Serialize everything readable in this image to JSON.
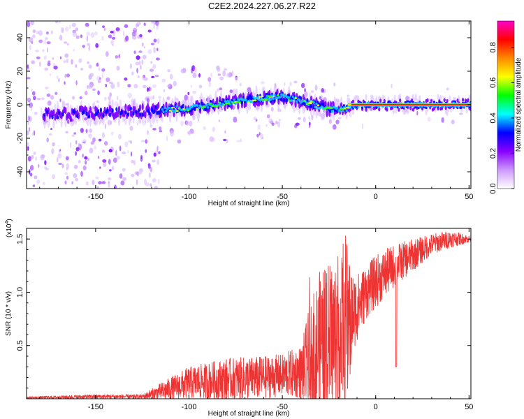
{
  "figure_title": "C2E2.2024.227.06.27.R22",
  "chart_data": [
    {
      "type": "heatmap",
      "title": "C2E2.2024.227.06.27.R22",
      "xlabel": "Height of straight line (km)",
      "ylabel": "Frequency (Hz)",
      "xlim": [
        -187,
        51
      ],
      "ylim": [
        -50,
        50
      ],
      "x_ticks": [
        -150,
        -100,
        -50,
        0,
        50
      ],
      "y_ticks": [
        -40,
        -20,
        0,
        20,
        40
      ],
      "colorbar": {
        "label": "Normalized spectral amplitude",
        "range": [
          0,
          0.95
        ],
        "ticks": [
          "0.0",
          "0.2",
          "0.4",
          "0.6",
          "0.8"
        ],
        "tick_values": [
          0,
          0.2,
          0.4,
          0.6,
          0.8
        ],
        "colors": [
          "#ffffff",
          "#cc99ff",
          "#8800ff",
          "#0000ff",
          "#00ffff",
          "#00ff00",
          "#ffff00",
          "#ff8800",
          "#ff0000",
          "#ff00cc"
        ]
      },
      "ridge": {
        "x": [
          -175,
          -150,
          -125,
          -100,
          -75,
          -50,
          -35,
          -25,
          -15,
          -10,
          0,
          10,
          20,
          30,
          40,
          51
        ],
        "y": [
          -6,
          -5,
          -4,
          -2,
          2,
          5,
          1,
          -3,
          -2,
          0,
          0,
          0,
          0,
          0,
          0,
          0
        ],
        "note": "Noise scattered across full frequency range for heights below -115 km; coherent signal concentrated near 0 Hz, strongest (red) above -15 km"
      }
    },
    {
      "type": "line",
      "xlabel": "Height of straight line (km)",
      "ylabel": "SNR (10 * v/v)",
      "y_multiplier": "(x10",
      "y_multiplier_exp": "4",
      "y_multiplier_close": ")",
      "xlim": [
        -187,
        51
      ],
      "ylim": [
        0,
        1.6
      ],
      "x_ticks": [
        -150,
        -100,
        -50,
        0,
        50
      ],
      "y_ticks": [
        0.5,
        1.0,
        1.5
      ],
      "y_tick_labels": [
        "0.5",
        "1.0",
        "1.5"
      ],
      "color": "#ee3333",
      "envelope": {
        "x": [
          -187,
          -150,
          -125,
          -112,
          -100,
          -80,
          -60,
          -50,
          -40,
          -35,
          -30,
          -20,
          -15,
          -12,
          -5,
          0,
          10,
          20,
          30,
          40,
          51
        ],
        "baseline": [
          0.01,
          0.02,
          0.02,
          0.08,
          0.15,
          0.18,
          0.2,
          0.22,
          0.25,
          0.35,
          0.5,
          0.6,
          0.7,
          0.8,
          1.0,
          1.1,
          1.25,
          1.35,
          1.45,
          1.5,
          1.5
        ],
        "amplitude": [
          0.01,
          0.02,
          0.02,
          0.1,
          0.15,
          0.2,
          0.2,
          0.2,
          0.25,
          0.55,
          0.7,
          0.75,
          0.8,
          0.35,
          0.25,
          0.25,
          0.2,
          0.15,
          0.1,
          0.08,
          0.03
        ]
      }
    }
  ]
}
